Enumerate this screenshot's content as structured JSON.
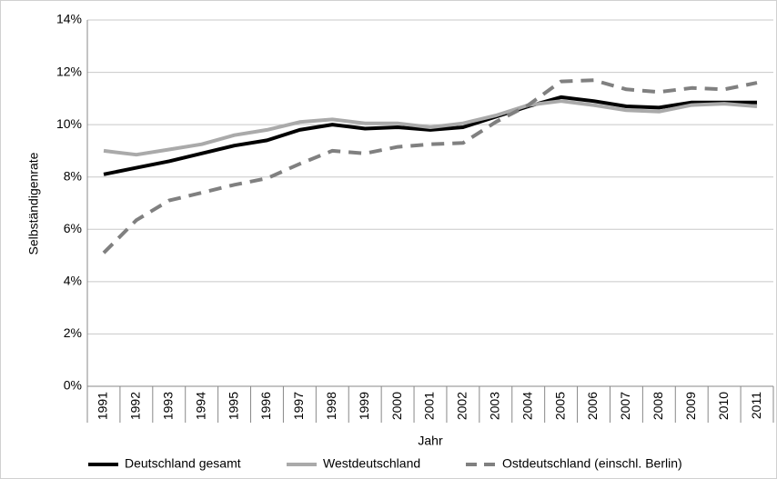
{
  "chart_data": {
    "type": "line",
    "x_label": "Jahr",
    "y_label": "Selbständigenrate",
    "categories": [
      "1991",
      "1992",
      "1993",
      "1994",
      "1995",
      "1996",
      "1997",
      "1998",
      "1999",
      "2000",
      "2001",
      "2002",
      "2003",
      "2004",
      "2005",
      "2006",
      "2007",
      "2008",
      "2009",
      "2010",
      "2011"
    ],
    "series": [
      {
        "name": "Deutschland gesamt",
        "color": "#000000",
        "dash": "solid",
        "values": [
          8.1,
          8.35,
          8.6,
          8.9,
          9.2,
          9.4,
          9.8,
          10.0,
          9.85,
          9.9,
          9.8,
          9.9,
          10.3,
          10.7,
          11.05,
          10.9,
          10.7,
          10.65,
          10.85,
          10.85,
          10.85
        ]
      },
      {
        "name": "Westdeutschland",
        "color": "#aaaaaa",
        "dash": "solid",
        "values": [
          9.0,
          8.85,
          9.05,
          9.25,
          9.6,
          9.8,
          10.1,
          10.2,
          10.05,
          10.05,
          9.9,
          10.05,
          10.35,
          10.75,
          10.9,
          10.75,
          10.55,
          10.5,
          10.75,
          10.8,
          10.7
        ]
      },
      {
        "name": "Ostdeutschland (einschl. Berlin)",
        "color": "#808080",
        "dash": "dashed",
        "values": [
          5.1,
          6.35,
          7.1,
          7.4,
          7.7,
          7.95,
          8.5,
          9.0,
          8.9,
          9.15,
          9.25,
          9.3,
          10.1,
          10.75,
          11.65,
          11.7,
          11.35,
          11.25,
          11.4,
          11.35,
          11.6
        ]
      }
    ],
    "ylim": [
      0,
      14
    ],
    "yticks": [
      {
        "value": 0,
        "label": "0%"
      },
      {
        "value": 2,
        "label": "2%"
      },
      {
        "value": 4,
        "label": "4%"
      },
      {
        "value": 6,
        "label": "6%"
      },
      {
        "value": 8,
        "label": "8%"
      },
      {
        "value": 10,
        "label": "10%"
      },
      {
        "value": 12,
        "label": "12%"
      },
      {
        "value": 14,
        "label": "14%"
      }
    ],
    "grid": true,
    "legend": "bottom"
  }
}
